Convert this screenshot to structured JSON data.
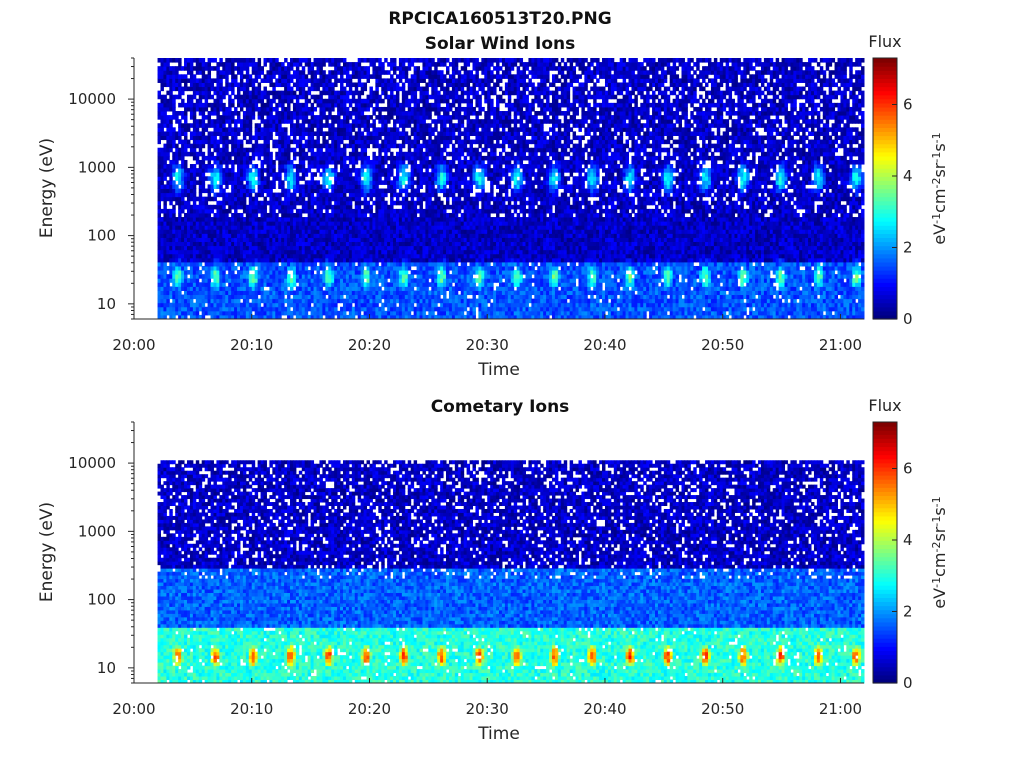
{
  "figure_title": "RPCICA160513T20.PNG",
  "colorbar": {
    "label": "Flux",
    "unit_base": [
      "eV",
      "cm",
      "sr",
      "s"
    ],
    "unit_exp": [
      "-1",
      "-2",
      "-1",
      "-1"
    ],
    "ticks": [
      "0",
      "2",
      "4",
      "6"
    ],
    "range": [
      0,
      7.3
    ],
    "colormap": "jet"
  },
  "chart_data": [
    {
      "type": "heatmap",
      "title": "Solar Wind Ions",
      "xlabel": "Time",
      "ylabel": "Energy (eV)",
      "x_ticks": [
        "20:00",
        "20:10",
        "20:20",
        "20:30",
        "20:40",
        "20:50",
        "21:00"
      ],
      "y_ticks": [
        "10",
        "100",
        "1000",
        "10000"
      ],
      "y_scale": "log",
      "xlim": [
        "20:00",
        "21:02"
      ],
      "ylim": [
        6,
        40000
      ],
      "data_start": "20:02",
      "data_end": "21:02",
      "background_flux": 0.6,
      "bands": [
        {
          "energy_min": 6,
          "energy_max": 40,
          "flux": 1.5
        },
        {
          "energy_min": 40,
          "energy_max": 40000,
          "flux": 0.5
        }
      ],
      "features": [
        {
          "energy": 25,
          "flux": 3.5,
          "period_min": 3.2
        },
        {
          "energy": 700,
          "flux": 2.8,
          "period_min": 3.2
        }
      ]
    },
    {
      "type": "heatmap",
      "title": "Cometary Ions",
      "xlabel": "Time",
      "ylabel": "Energy (eV)",
      "x_ticks": [
        "20:00",
        "20:10",
        "20:20",
        "20:30",
        "20:40",
        "20:50",
        "21:00"
      ],
      "y_ticks": [
        "10",
        "100",
        "1000",
        "10000"
      ],
      "y_scale": "log",
      "xlim": [
        "20:00",
        "21:02"
      ],
      "ylim": [
        6,
        40000
      ],
      "data_start": "20:02",
      "data_end": "21:02",
      "data_emax": 11000,
      "background_flux": 0.3,
      "bands": [
        {
          "energy_min": 6,
          "energy_max": 40,
          "flux": 3.0
        },
        {
          "energy_min": 40,
          "energy_max": 300,
          "flux": 1.6
        },
        {
          "energy_min": 300,
          "energy_max": 11000,
          "flux": 0.5
        }
      ],
      "features": [
        {
          "energy": 15,
          "flux": 6.0,
          "period_min": 3.2
        }
      ]
    }
  ]
}
